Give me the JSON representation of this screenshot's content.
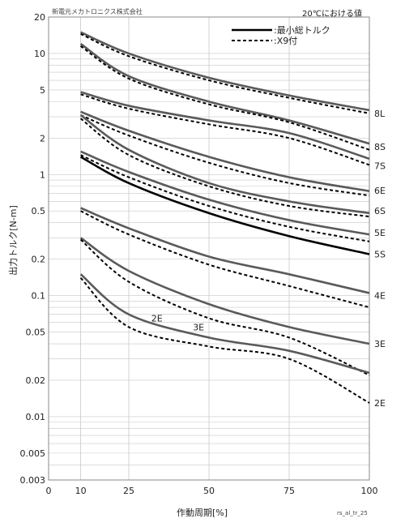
{
  "header": {
    "company": "新電元メカトロニクス株式会社",
    "condition": "20℃における値"
  },
  "footer": {
    "figure_id": "rs_al_tr_25"
  },
  "colors": {
    "min_total_torque": "#000000",
    "x9_attached": "#000000",
    "gray_curve": "#5a5a5a",
    "highlight_curve": "#000000",
    "grid": "#c8c8c8"
  },
  "chart_data": {
    "type": "line",
    "xlabel": "作動周期[%]",
    "ylabel": "出力トルク[N-m]",
    "xlim": [
      0,
      100
    ],
    "ylim": [
      0.003,
      20
    ],
    "y_scale": "log",
    "x_ticks": [
      0,
      10,
      25,
      50,
      75,
      100
    ],
    "y_ticks": [
      0.003,
      0.005,
      0.01,
      0.02,
      0.05,
      0.1,
      0.2,
      0.5,
      1,
      2,
      5,
      10,
      20
    ],
    "y_tick_labels": [
      "0.003",
      "0.005",
      "0.01",
      "0.02",
      "0.05",
      "0.1",
      "0.2",
      "0.5",
      "1",
      "2",
      "5",
      "10",
      "20"
    ],
    "grid": true,
    "legend": {
      "placement": "top-right",
      "entries": [
        {
          "label": ":最小総トルク",
          "style": "solid"
        },
        {
          "label": ":X9付",
          "style": "dashed"
        }
      ]
    },
    "series": [
      {
        "name": "8L",
        "style": "solid",
        "x": [
          10,
          25,
          50,
          75,
          100
        ],
        "y": [
          15,
          10,
          6.3,
          4.5,
          3.4
        ]
      },
      {
        "name": "8L",
        "style": "dashed",
        "x": [
          10,
          25,
          50,
          75,
          100
        ],
        "y": [
          14.5,
          9.5,
          6.0,
          4.3,
          3.2
        ]
      },
      {
        "name": "8S",
        "style": "solid",
        "x": [
          10,
          25,
          50,
          75,
          100
        ],
        "y": [
          12,
          6.5,
          4.0,
          2.8,
          1.8
        ]
      },
      {
        "name": "8S",
        "style": "dashed",
        "x": [
          10,
          25,
          50,
          75,
          100
        ],
        "y": [
          11.5,
          6.2,
          3.8,
          2.7,
          1.6
        ]
      },
      {
        "name": "7S",
        "style": "solid",
        "x": [
          10,
          25,
          50,
          75,
          100
        ],
        "y": [
          4.8,
          3.7,
          2.8,
          2.2,
          1.35
        ]
      },
      {
        "name": "7S",
        "style": "dashed",
        "x": [
          10,
          25,
          50,
          75,
          100
        ],
        "y": [
          4.6,
          3.5,
          2.6,
          2.0,
          1.2
        ]
      },
      {
        "name": "6E",
        "style": "solid",
        "x": [
          10,
          25,
          50,
          75,
          100
        ],
        "y": [
          3.3,
          2.3,
          1.4,
          0.95,
          0.73
        ]
      },
      {
        "name": "6E",
        "style": "dashed",
        "x": [
          10,
          25,
          50,
          75,
          100
        ],
        "y": [
          3.1,
          2.1,
          1.25,
          0.85,
          0.67
        ]
      },
      {
        "name": "6S",
        "style": "solid",
        "x": [
          10,
          25,
          50,
          75,
          100
        ],
        "y": [
          3.1,
          1.6,
          0.85,
          0.6,
          0.48
        ]
      },
      {
        "name": "6S",
        "style": "dashed",
        "x": [
          10,
          25,
          50,
          75,
          100
        ],
        "y": [
          2.9,
          1.45,
          0.8,
          0.55,
          0.45
        ]
      },
      {
        "name": "5E",
        "style": "solid",
        "x": [
          10,
          25,
          50,
          75,
          100
        ],
        "y": [
          1.55,
          1.05,
          0.62,
          0.42,
          0.32
        ]
      },
      {
        "name": "5E",
        "style": "dashed",
        "x": [
          10,
          25,
          50,
          75,
          100
        ],
        "y": [
          1.45,
          0.95,
          0.55,
          0.37,
          0.28
        ]
      },
      {
        "name": "5S",
        "style": "solid",
        "color": "highlight",
        "x": [
          10,
          25,
          50,
          75,
          100
        ],
        "y": [
          1.4,
          0.85,
          0.48,
          0.31,
          0.22
        ]
      },
      {
        "name": "4E",
        "style": "solid",
        "x": [
          10,
          25,
          50,
          75,
          100
        ],
        "y": [
          0.53,
          0.36,
          0.21,
          0.15,
          0.105
        ]
      },
      {
        "name": "4E",
        "style": "dashed",
        "x": [
          10,
          25,
          50,
          75,
          100
        ],
        "y": [
          0.5,
          0.32,
          0.18,
          0.12,
          0.08
        ]
      },
      {
        "name": "3E",
        "style": "solid",
        "x": [
          10,
          25,
          50,
          75,
          100
        ],
        "y": [
          0.3,
          0.16,
          0.085,
          0.055,
          0.04
        ]
      },
      {
        "name": "3E",
        "style": "dashed",
        "x": [
          10,
          25,
          50,
          75,
          100
        ],
        "y": [
          0.29,
          0.13,
          0.065,
          0.045,
          0.022
        ]
      },
      {
        "name": "2E",
        "style": "solid",
        "x": [
          10,
          25,
          50,
          75,
          100
        ],
        "y": [
          0.15,
          0.07,
          0.045,
          0.035,
          0.023
        ]
      },
      {
        "name": "2E",
        "style": "dashed",
        "x": [
          10,
          25,
          50,
          75,
          100
        ],
        "y": [
          0.14,
          0.055,
          0.038,
          0.03,
          0.013
        ]
      }
    ],
    "right_labels": [
      {
        "text": "8L",
        "y": 3.2
      },
      {
        "text": "8S",
        "y": 1.7
      },
      {
        "text": "7S",
        "y": 1.18
      },
      {
        "text": "6E",
        "y": 0.74
      },
      {
        "text": "6S",
        "y": 0.5
      },
      {
        "text": "5E",
        "y": 0.33
      },
      {
        "text": "5S",
        "y": 0.22
      },
      {
        "text": "4E",
        "y": 0.1
      },
      {
        "text": "3E",
        "y": 0.04
      },
      {
        "text": "2E",
        "y": 0.013
      }
    ],
    "annotations": [
      {
        "text": "2E",
        "x": 32,
        "y": 0.065
      },
      {
        "text": "3E",
        "x": 45,
        "y": 0.055
      }
    ]
  }
}
